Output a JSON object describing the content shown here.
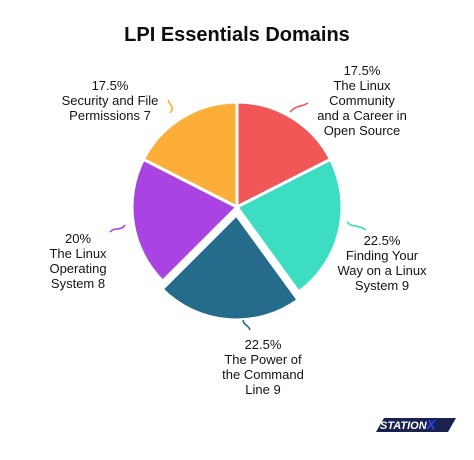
{
  "chart_data": {
    "type": "pie",
    "title": "LPI Essentials Domains",
    "slices": [
      {
        "percent": "17.5%",
        "value": 17.5,
        "lines": [
          "The Linux",
          "Community",
          "and a Career in",
          "Open Source"
        ],
        "color": "#f25757"
      },
      {
        "percent": "22.5%",
        "value": 22.5,
        "lines": [
          "Finding Your",
          "Way on a Linux",
          "System 9"
        ],
        "color": "#3dddc2"
      },
      {
        "percent": "22.5%",
        "value": 22.5,
        "lines": [
          "The Power of",
          "the Command",
          "Line 9"
        ],
        "color": "#246b8c"
      },
      {
        "percent": "20%",
        "value": 20,
        "lines": [
          "The Linux",
          "Operating",
          "System 8"
        ],
        "color": "#a944e2"
      },
      {
        "percent": "17.5%",
        "value": 17.5,
        "lines": [
          "Security and File",
          "Permissions 7"
        ],
        "color": "#fdae39"
      }
    ]
  },
  "branding": {
    "logo_text": "STATIONX",
    "logo_accent_letter": "X",
    "colors": {
      "primary": "#1a2050",
      "accent": "#2f44ff"
    }
  }
}
